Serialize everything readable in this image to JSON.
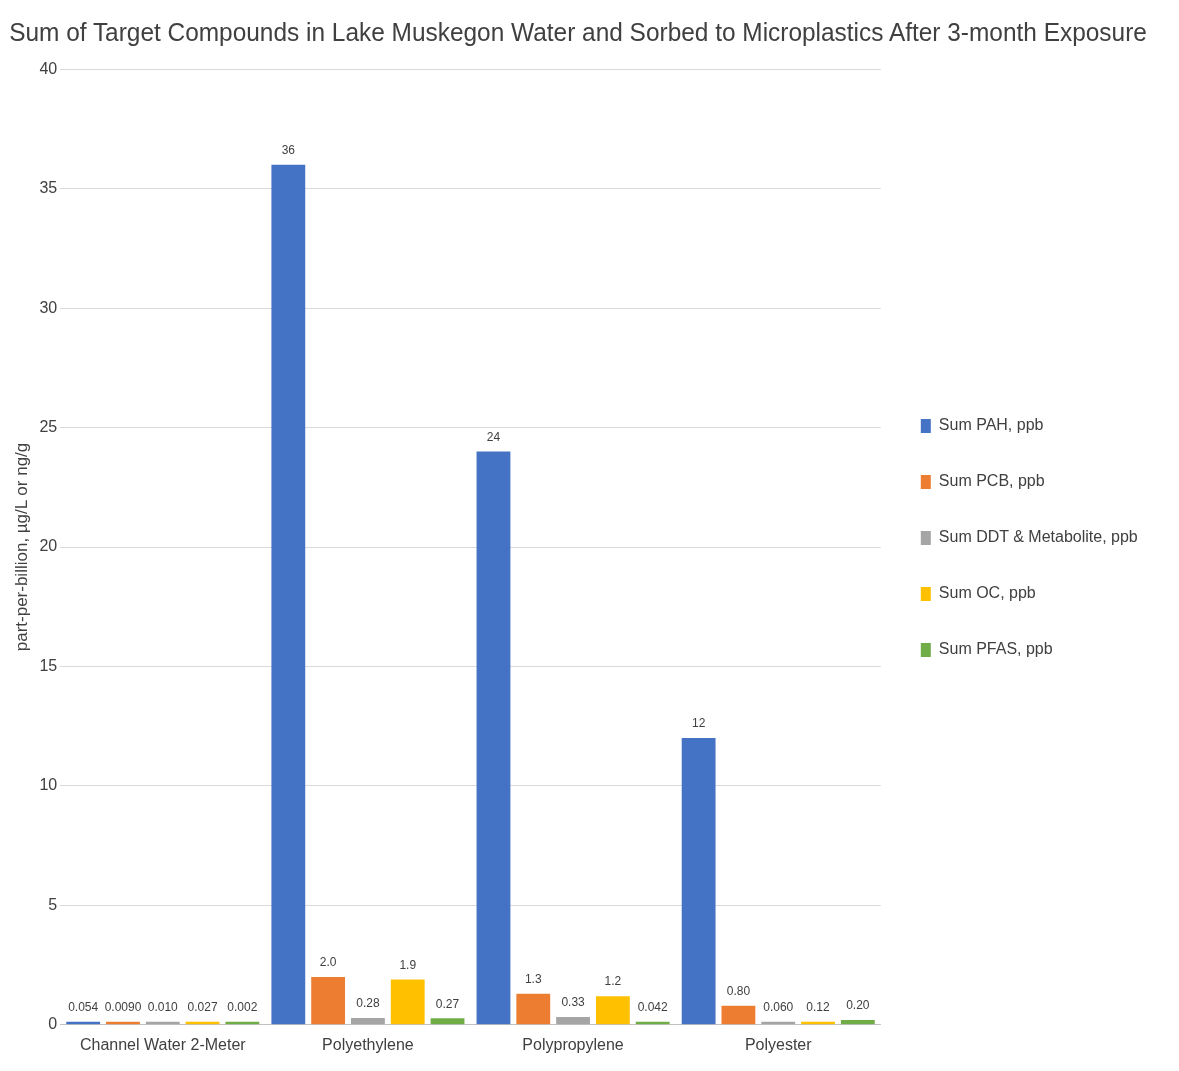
{
  "chart_data": {
    "type": "bar",
    "title": "Sum of Target Compounds in Lake Muskegon Water and Sorbed to Microplastics After 3-month Exposure",
    "ylabel": "part-per-billion, µg/L or ng/g",
    "categories": [
      "Channel Water 2-Meter",
      "Polyethylene",
      "Polypropylene",
      "Polyester"
    ],
    "series": [
      {
        "name": "Sum PAH, ppb",
        "color": "#4472c4",
        "values": [
          0.054,
          36,
          24,
          12
        ],
        "value_labels": [
          "0.054",
          "36",
          "24",
          "12"
        ]
      },
      {
        "name": "Sum PCB, ppb",
        "color": "#ed7d31",
        "values": [
          0.009,
          2.0,
          1.3,
          0.8
        ],
        "value_labels": [
          "0.0090",
          "2.0",
          "1.3",
          "0.80"
        ]
      },
      {
        "name": "Sum DDT & Metabolite, ppb",
        "color": "#a5a5a5",
        "values": [
          0.01,
          0.28,
          0.33,
          0.06
        ],
        "value_labels": [
          "0.010",
          "0.28",
          "0.33",
          "0.060"
        ]
      },
      {
        "name": "Sum OC, ppb",
        "color": "#ffc000",
        "values": [
          0.027,
          1.9,
          1.2,
          0.12
        ],
        "value_labels": [
          "0.027",
          "1.9",
          "1.2",
          "0.12"
        ]
      },
      {
        "name": "Sum PFAS, ppb",
        "color": "#70ad47",
        "values": [
          0.002,
          0.27,
          0.042,
          0.2
        ],
        "value_labels": [
          "0.002",
          "0.27",
          "0.042",
          "0.20"
        ]
      }
    ],
    "ylim": [
      0,
      40
    ],
    "yticks": [
      0,
      5,
      10,
      15,
      20,
      25,
      30,
      35,
      40
    ],
    "grid": "y",
    "legend": "right"
  }
}
